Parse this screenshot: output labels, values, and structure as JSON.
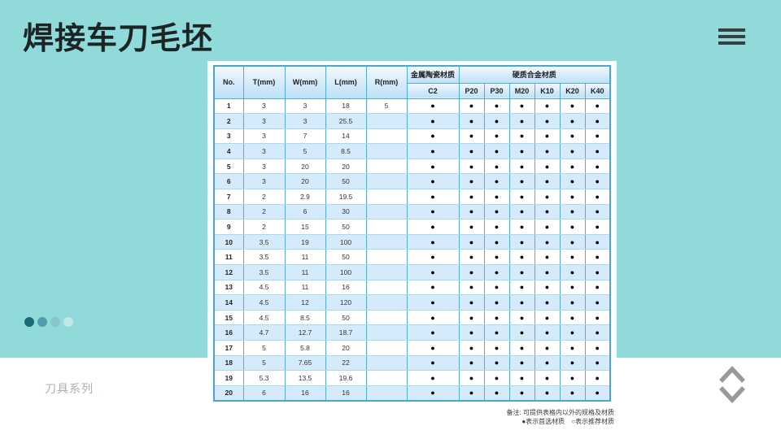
{
  "title": "焊接车刀毛坯",
  "series_label": "刀具系列",
  "colors": {
    "background_teal": "#90dbd9",
    "table_border_blue": "#4aa7d4",
    "row_alt_blue": "#d5ebfb",
    "pagination_dots": [
      "#1a6b7a",
      "#4f9dab",
      "#85c6cb",
      "#c2e7e6"
    ],
    "chevron_gray": "#999999"
  },
  "table": {
    "col_headers": [
      "No.",
      "T(mm)",
      "W(mm)",
      "L(mm)",
      "R(mm)"
    ],
    "group_headers": [
      {
        "label": "金属陶瓷材质",
        "span": 1
      },
      {
        "label": "硬质合金材质",
        "span": 6
      }
    ],
    "material_cols": [
      "C2",
      "P20",
      "P30",
      "M20",
      "K10",
      "K20",
      "K40"
    ],
    "preferred_symbol": "●",
    "recommended_symbol": "○",
    "rows": [
      {
        "no": "1",
        "t": "3",
        "w": "3",
        "l": "18",
        "r": "5",
        "materials": [
          "●",
          "●",
          "●",
          "●",
          "●",
          "●",
          "●"
        ]
      },
      {
        "no": "2",
        "t": "3",
        "w": "3",
        "l": "25.5",
        "r": "",
        "materials": [
          "●",
          "●",
          "●",
          "●",
          "●",
          "●",
          "●"
        ]
      },
      {
        "no": "3",
        "t": "3",
        "w": "7",
        "l": "14",
        "r": "",
        "materials": [
          "●",
          "●",
          "●",
          "●",
          "●",
          "●",
          "●"
        ]
      },
      {
        "no": "4",
        "t": "3",
        "w": "5",
        "l": "8.5",
        "r": "",
        "materials": [
          "●",
          "●",
          "●",
          "●",
          "●",
          "●",
          "●"
        ]
      },
      {
        "no": "5",
        "t": "3",
        "w": "20",
        "l": "20",
        "r": "",
        "materials": [
          "●",
          "●",
          "●",
          "●",
          "●",
          "●",
          "●"
        ]
      },
      {
        "no": "6",
        "t": "3",
        "w": "20",
        "l": "50",
        "r": "",
        "materials": [
          "●",
          "●",
          "●",
          "●",
          "●",
          "●",
          "●"
        ]
      },
      {
        "no": "7",
        "t": "2",
        "w": "2.9",
        "l": "19.5",
        "r": "",
        "materials": [
          "●",
          "●",
          "●",
          "●",
          "●",
          "●",
          "●"
        ]
      },
      {
        "no": "8",
        "t": "2",
        "w": "6",
        "l": "30",
        "r": "",
        "materials": [
          "●",
          "●",
          "●",
          "●",
          "●",
          "●",
          "●"
        ]
      },
      {
        "no": "9",
        "t": "2",
        "w": "15",
        "l": "50",
        "r": "",
        "materials": [
          "●",
          "●",
          "●",
          "●",
          "●",
          "●",
          "●"
        ]
      },
      {
        "no": "10",
        "t": "3.5",
        "w": "19",
        "l": "100",
        "r": "",
        "materials": [
          "●",
          "●",
          "●",
          "●",
          "●",
          "●",
          "●"
        ]
      },
      {
        "no": "11",
        "t": "3.5",
        "w": "11",
        "l": "50",
        "r": "",
        "materials": [
          "●",
          "●",
          "●",
          "●",
          "●",
          "●",
          "●"
        ]
      },
      {
        "no": "12",
        "t": "3.5",
        "w": "11",
        "l": "100",
        "r": "",
        "materials": [
          "●",
          "●",
          "●",
          "●",
          "●",
          "●",
          "●"
        ]
      },
      {
        "no": "13",
        "t": "4.5",
        "w": "11",
        "l": "16",
        "r": "",
        "materials": [
          "●",
          "●",
          "●",
          "●",
          "●",
          "●",
          "●"
        ]
      },
      {
        "no": "14",
        "t": "4.5",
        "w": "12",
        "l": "120",
        "r": "",
        "materials": [
          "●",
          "●",
          "●",
          "●",
          "●",
          "●",
          "●"
        ]
      },
      {
        "no": "15",
        "t": "4.5",
        "w": "8.5",
        "l": "50",
        "r": "",
        "materials": [
          "●",
          "●",
          "●",
          "●",
          "●",
          "●",
          "●"
        ]
      },
      {
        "no": "16",
        "t": "4.7",
        "w": "12.7",
        "l": "18.7",
        "r": "",
        "materials": [
          "●",
          "●",
          "●",
          "●",
          "●",
          "●",
          "●"
        ]
      },
      {
        "no": "17",
        "t": "5",
        "w": "5.8",
        "l": "20",
        "r": "",
        "materials": [
          "●",
          "●",
          "●",
          "●",
          "●",
          "●",
          "●"
        ]
      },
      {
        "no": "18",
        "t": "5",
        "w": "7.65",
        "l": "22",
        "r": "",
        "materials": [
          "●",
          "●",
          "●",
          "●",
          "●",
          "●",
          "●"
        ]
      },
      {
        "no": "19",
        "t": "5.3",
        "w": "13.5",
        "l": "19.6",
        "r": "",
        "materials": [
          "●",
          "●",
          "●",
          "●",
          "●",
          "●",
          "●"
        ]
      },
      {
        "no": "20",
        "t": "6",
        "w": "16",
        "l": "16",
        "r": "",
        "materials": [
          "●",
          "●",
          "●",
          "●",
          "●",
          "●",
          "●"
        ]
      }
    ]
  },
  "notes": {
    "line1": "备注: 可提供表格内以外的规格及材质",
    "line2": "●表示首选材质　○表示推荐材质"
  }
}
